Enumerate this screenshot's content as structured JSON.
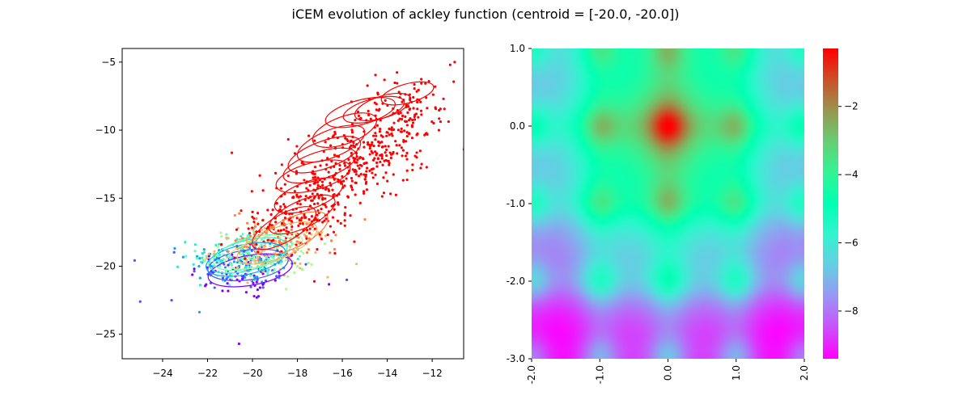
{
  "figure": {
    "suptitle": "iCEM evolution of ackley function (centroid = [-20.0, -20.0])"
  },
  "chart_data": [
    {
      "type": "scatter",
      "title": "",
      "xlabel": "",
      "ylabel": "",
      "xlim": [
        -25.8,
        -10.6
      ],
      "ylim": [
        -26.8,
        -4.0
      ],
      "xticks": [
        -24,
        -22,
        -20,
        -18,
        -16,
        -14,
        -12
      ],
      "yticks": [
        -25,
        -20,
        -15,
        -10,
        -5
      ],
      "grid": false,
      "series": [
        {
          "color": "#8000ff",
          "n_points": 60,
          "center": [
            -20.2,
            -20.6
          ],
          "spread": [
            1.3,
            1.0
          ],
          "ellipse": {
            "center": [
              -20.1,
              -20.3
            ],
            "rx": 1.9,
            "ry": 1.1,
            "angle": 10
          }
        },
        {
          "color": "#4856fb",
          "n_points": 60,
          "center": [
            -20.4,
            -20.0
          ],
          "spread": [
            1.2,
            0.9
          ],
          "ellipse": {
            "center": [
              -20.2,
              -19.9
            ],
            "rx": 1.8,
            "ry": 1.1,
            "angle": 8
          }
        },
        {
          "color": "#10a2f0",
          "n_points": 70,
          "center": [
            -20.5,
            -19.6
          ],
          "spread": [
            1.2,
            0.9
          ],
          "ellipse": {
            "center": [
              -20.3,
              -19.5
            ],
            "rx": 1.8,
            "ry": 1.1,
            "angle": 12
          }
        },
        {
          "color": "#28ecd2",
          "n_points": 70,
          "center": [
            -20.6,
            -19.3
          ],
          "spread": [
            1.1,
            0.9
          ],
          "ellipse": {
            "center": [
              -20.2,
              -19.2
            ],
            "rx": 1.8,
            "ry": 1.1,
            "angle": 15
          }
        },
        {
          "color": "#62fbc4",
          "n_points": 70,
          "center": [
            -20.2,
            -19.3
          ],
          "spread": [
            1.1,
            0.9
          ],
          "ellipse": {
            "center": [
              -20.0,
              -19.0
            ],
            "rx": 1.8,
            "ry": 1.1,
            "angle": 15
          }
        },
        {
          "color": "#b0f696",
          "n_points": 70,
          "center": [
            -19.6,
            -19.1
          ],
          "spread": [
            1.2,
            0.9
          ],
          "ellipse": {
            "center": [
              -19.5,
              -18.9
            ],
            "rx": 1.8,
            "ry": 1.0,
            "angle": 18
          }
        },
        {
          "color": "#ffb360",
          "n_points": 80,
          "center": [
            -19.0,
            -18.7
          ],
          "spread": [
            1.3,
            1.0
          ],
          "ellipse": {
            "center": [
              -18.9,
              -18.3
            ],
            "rx": 1.9,
            "ry": 1.1,
            "angle": 22
          }
        },
        {
          "color": "#ff7e41",
          "n_points": 70,
          "center": [
            -18.6,
            -17.9
          ],
          "spread": [
            1.2,
            1.0
          ],
          "ellipse": {
            "center": [
              -18.3,
              -17.6
            ],
            "rx": 1.8,
            "ry": 1.1,
            "angle": 25
          }
        },
        {
          "color": "#ff0000",
          "n_points": 600,
          "center": [
            -16.8,
            -13.0
          ],
          "spread": [
            2.2,
            3.0
          ],
          "ellipses": [
            {
              "center": [
                -18.6,
                -17.2
              ],
              "rx": 1.6,
              "ry": 1.0,
              "angle": 30
            },
            {
              "center": [
                -17.8,
                -16.2
              ],
              "rx": 1.6,
              "ry": 1.0,
              "angle": 25
            },
            {
              "center": [
                -17.5,
                -14.8
              ],
              "rx": 1.6,
              "ry": 1.0,
              "angle": 20
            },
            {
              "center": [
                -17.3,
                -13.4
              ],
              "rx": 1.7,
              "ry": 1.0,
              "angle": 15
            },
            {
              "center": [
                -17.0,
                -12.6
              ],
              "rx": 1.7,
              "ry": 1.0,
              "angle": 18
            },
            {
              "center": [
                -16.8,
                -11.8
              ],
              "rx": 1.7,
              "ry": 1.0,
              "angle": 20
            },
            {
              "center": [
                -16.5,
                -11.0
              ],
              "rx": 1.6,
              "ry": 1.0,
              "angle": 22
            },
            {
              "center": [
                -15.9,
                -10.0
              ],
              "rx": 1.5,
              "ry": 1.0,
              "angle": 20
            },
            {
              "center": [
                -15.2,
                -8.7
              ],
              "rx": 1.6,
              "ry": 0.9,
              "angle": 15
            },
            {
              "center": [
                -14.6,
                -8.5
              ],
              "rx": 1.4,
              "ry": 0.8,
              "angle": 15
            },
            {
              "center": [
                -14.2,
                -8.3
              ],
              "rx": 1.3,
              "ry": 0.8,
              "angle": 18
            },
            {
              "center": [
                -13.1,
                -7.3
              ],
              "rx": 1.2,
              "ry": 0.7,
              "angle": 15
            }
          ]
        }
      ],
      "extreme_points": [
        [
          -25.0,
          -22.6
        ],
        [
          -23.6,
          -22.5
        ],
        [
          -20.6,
          -25.7
        ],
        [
          -11.0,
          -5.0
        ],
        [
          -11.2,
          -5.2
        ],
        [
          -15.8,
          -21.0
        ]
      ]
    },
    {
      "type": "heatmap",
      "title": "",
      "function": "negative ackley",
      "x_range": [
        -2.0,
        2.0
      ],
      "y_range": [
        -3.0,
        1.0
      ],
      "xtick_labels": [
        "-2.0",
        "-1.0",
        "0.0",
        "1.0",
        "2.0"
      ],
      "xtick_values": [
        -2,
        -1,
        0,
        1,
        2
      ],
      "ytick_labels": [
        "1.0",
        "0.0",
        "-1.0",
        "-2.0",
        "-3.0"
      ],
      "ytick_values": [
        1,
        0,
        -1,
        -2,
        -3
      ],
      "colormap": "rainbow",
      "colorbar": {
        "range": [
          -9.4,
          -0.3
        ],
        "tick_labels": [
          "−2",
          "−4",
          "−6",
          "−8"
        ],
        "tick_values": [
          -2,
          -4,
          -6,
          -8
        ]
      }
    }
  ]
}
